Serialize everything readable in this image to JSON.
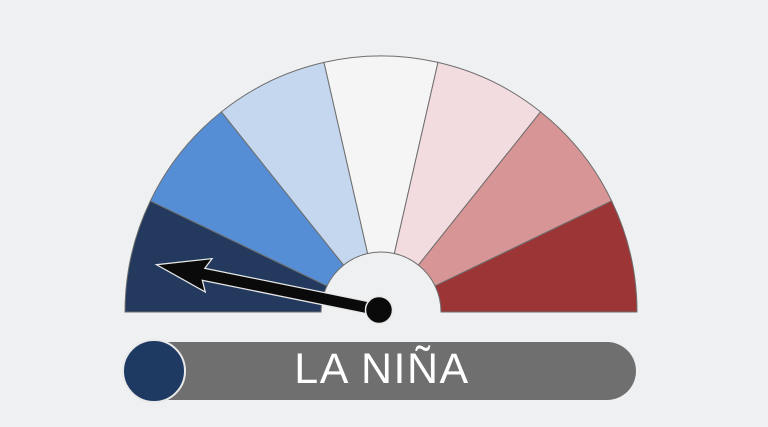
{
  "colors": {
    "background": "#eff0f1",
    "segment_stroke": "#6e6e6e",
    "needle_fill": "#0a0a0a",
    "needle_outline": "#e8e8e8",
    "pill_background": "#6f6f6f",
    "pill_text": "#ffffff",
    "indicator_circle": "#1e3a63"
  },
  "status_bar": {
    "label": "LA NIÑA"
  },
  "chart_data": {
    "type": "gauge",
    "angle_span_deg": 180,
    "segment_count": 7,
    "segment_colors": [
      "#233a5e",
      "#568ed6",
      "#c5d7ef",
      "#f5f5f6",
      "#f3dcdf",
      "#d79595",
      "#9c3636"
    ],
    "needle_angle_deg": 168.5,
    "needle_segment_index": 0,
    "status_label": "LA NIÑA",
    "legend_position": "none",
    "title": ""
  }
}
